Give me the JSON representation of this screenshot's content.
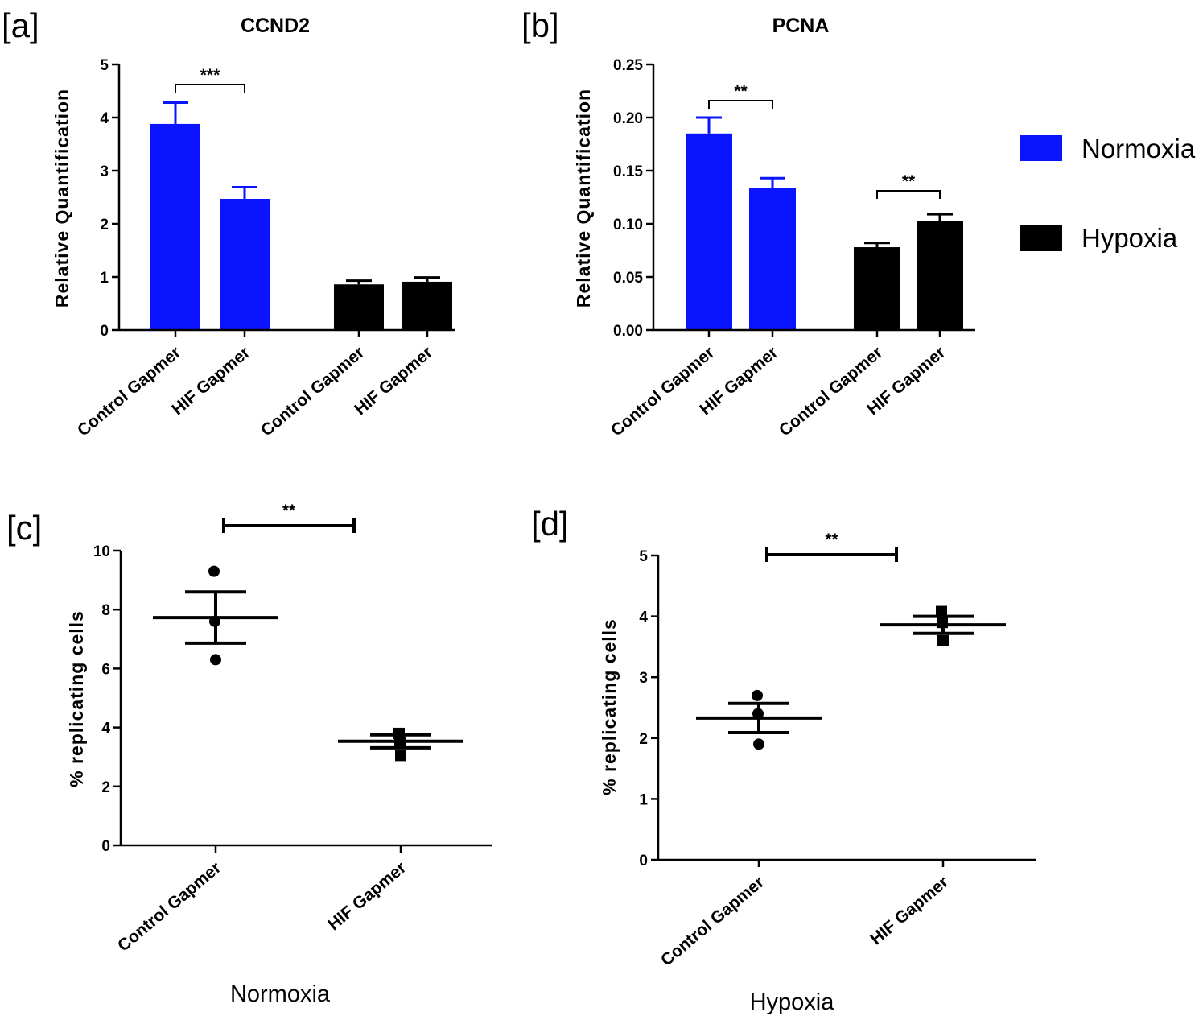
{
  "colors": {
    "normoxia": "#0a14ff",
    "hypoxia": "#000000"
  },
  "legend": {
    "items": [
      {
        "label": "Normoxia",
        "color": "#0a14ff"
      },
      {
        "label": "Hypoxia",
        "color": "#000000"
      }
    ]
  },
  "chart_data": [
    {
      "id": "a",
      "panel_label": "[a]",
      "type": "bar",
      "title": "CCND2",
      "ylabel": "Relative Quantification",
      "ylim": [
        0,
        5
      ],
      "yticks": [
        "0",
        "1",
        "2",
        "3",
        "4",
        "5"
      ],
      "categories": [
        "Control Gapmer",
        "HIF Gapmer",
        "Control Gapmer",
        "HIF Gapmer"
      ],
      "values": [
        3.88,
        2.47,
        0.86,
        0.91
      ],
      "errors": [
        0.4,
        0.22,
        0.07,
        0.08
      ],
      "series_of_bar": [
        "Normoxia",
        "Normoxia",
        "Hypoxia",
        "Hypoxia"
      ],
      "significance": [
        {
          "between": [
            0,
            1
          ],
          "label": "***"
        }
      ]
    },
    {
      "id": "b",
      "panel_label": "[b]",
      "type": "bar",
      "title": "PCNA",
      "ylabel": "Relative Quantification",
      "ylim": [
        0,
        0.25
      ],
      "yticks": [
        "0.00",
        "0.05",
        "0.10",
        "0.15",
        "0.20",
        "0.25"
      ],
      "categories": [
        "Control Gapmer",
        "HIF Gapmer",
        "Control Gapmer",
        "HIF Gapmer"
      ],
      "values": [
        0.185,
        0.134,
        0.078,
        0.103
      ],
      "errors": [
        0.015,
        0.009,
        0.004,
        0.006
      ],
      "series_of_bar": [
        "Normoxia",
        "Normoxia",
        "Hypoxia",
        "Hypoxia"
      ],
      "significance": [
        {
          "between": [
            0,
            1
          ],
          "label": "**"
        },
        {
          "between": [
            2,
            3
          ],
          "label": "**"
        }
      ]
    },
    {
      "id": "c",
      "panel_label": "[c]",
      "type": "scatter",
      "ylabel": "% replicating cells",
      "xlabel": "Normoxia",
      "ylim": [
        0,
        10
      ],
      "yticks": [
        "0",
        "2",
        "4",
        "6",
        "8",
        "10"
      ],
      "categories": [
        "Control Gapmer",
        "HIF Gapmer"
      ],
      "points": [
        [
          9.3,
          7.6,
          6.3
        ],
        [
          3.8,
          3.5,
          3.05
        ]
      ],
      "markers": [
        "circle",
        "square"
      ],
      "mean": [
        7.73,
        3.53
      ],
      "sem": [
        0.87,
        0.22
      ],
      "significance": [
        {
          "between": [
            0,
            1
          ],
          "label": "**"
        }
      ]
    },
    {
      "id": "d",
      "panel_label": "[d]",
      "type": "scatter",
      "ylabel": "% replicating cells",
      "xlabel": "Hypoxia",
      "ylim": [
        0,
        5
      ],
      "yticks": [
        "0",
        "1",
        "2",
        "3",
        "4",
        "5"
      ],
      "categories": [
        "Control Gapmer",
        "HIF Gapmer"
      ],
      "points": [
        [
          2.7,
          2.4,
          1.9
        ],
        [
          4.08,
          3.9,
          3.6
        ]
      ],
      "markers": [
        "circle",
        "square"
      ],
      "mean": [
        2.33,
        3.86
      ],
      "sem": [
        0.24,
        0.14
      ],
      "significance": [
        {
          "between": [
            0,
            1
          ],
          "label": "**"
        }
      ]
    }
  ]
}
